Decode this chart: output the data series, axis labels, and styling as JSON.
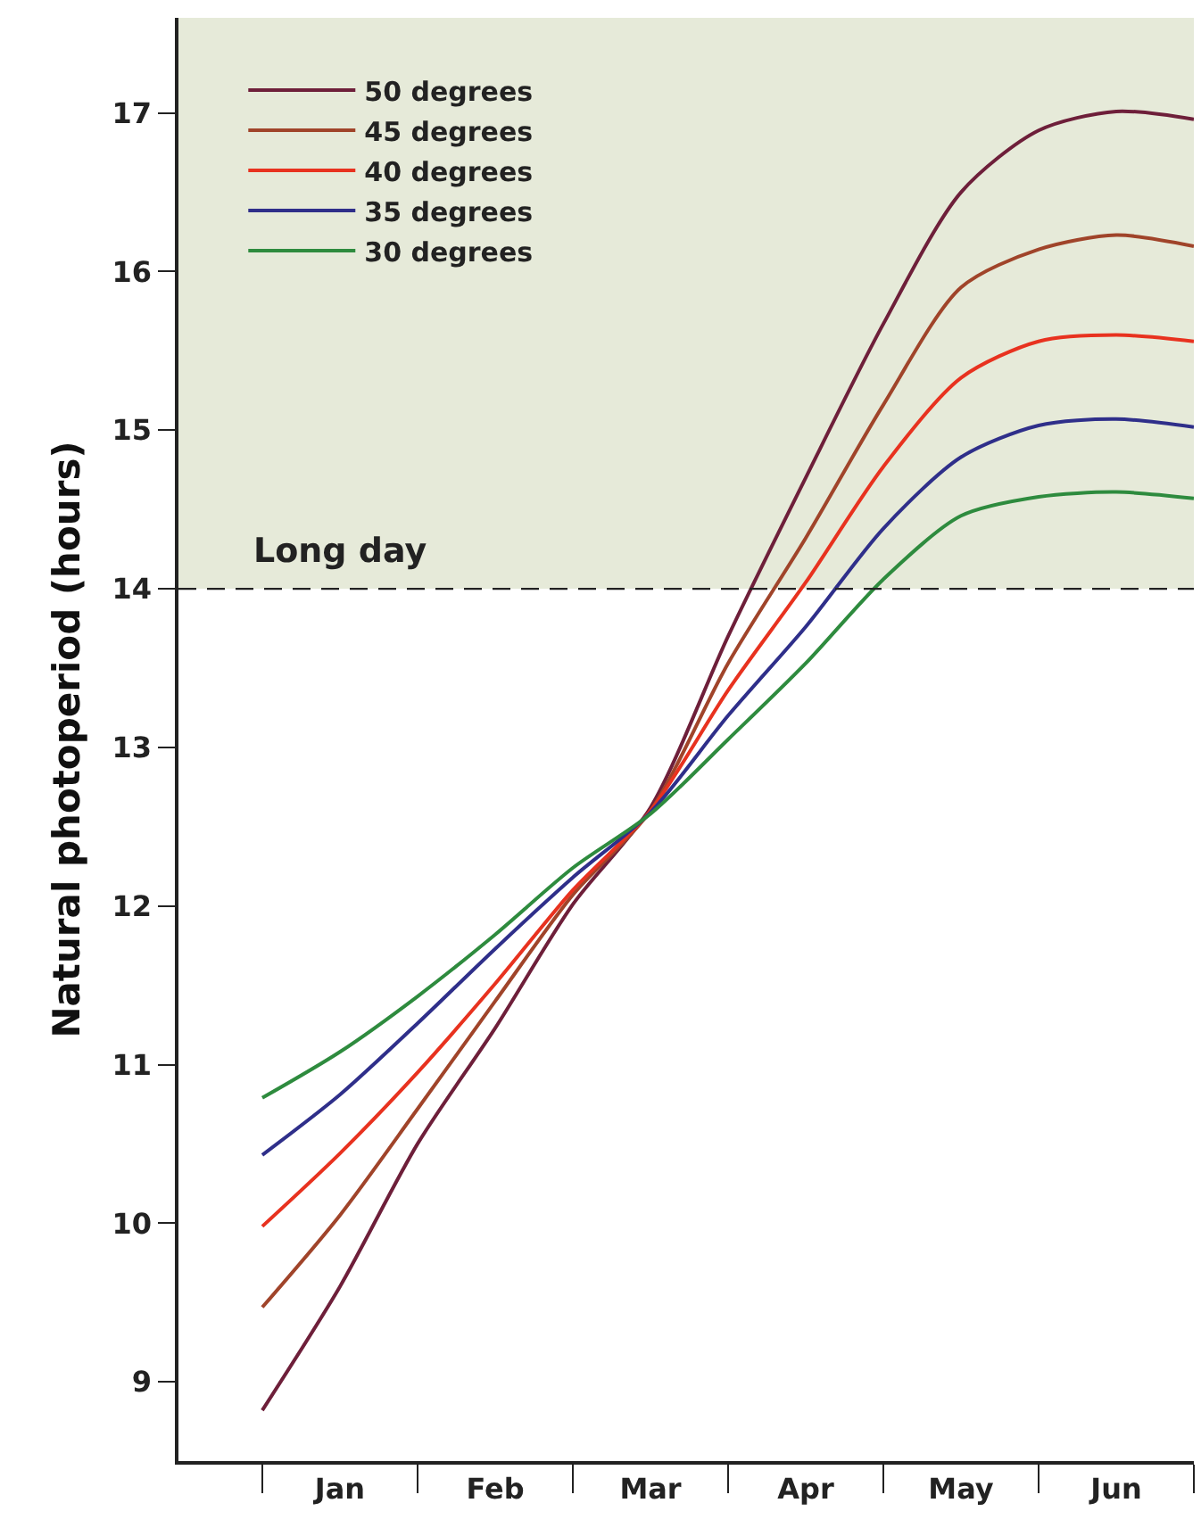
{
  "chart_data": {
    "type": "line",
    "ylabel": "Natural photoperiod (hours)",
    "categories": [
      null,
      "Jan",
      null,
      "Feb",
      null,
      "Mar",
      null,
      "Apr",
      null,
      "May",
      null,
      "Jun",
      null
    ],
    "ylim": [
      8.5,
      17.6
    ],
    "yticks": [
      9,
      10,
      11,
      12,
      13,
      14,
      15,
      16,
      17
    ],
    "grid": false,
    "legend": "top left",
    "marker": "none",
    "line_style": "solid",
    "series": [
      {
        "name": "50 degrees",
        "color": "#6e1f3a",
        "values": [
          8.82,
          9.6,
          10.5,
          11.23,
          12.01,
          12.62,
          13.7,
          14.7,
          15.67,
          16.5,
          16.89,
          17.01,
          16.96
        ]
      },
      {
        "name": "45 degrees",
        "color": "#a0442a",
        "values": [
          9.47,
          10.05,
          10.72,
          11.4,
          12.07,
          12.6,
          13.53,
          14.32,
          15.16,
          15.9,
          16.14,
          16.23,
          16.16
        ]
      },
      {
        "name": "40 degrees",
        "color": "#e8321f",
        "values": [
          9.98,
          10.44,
          10.95,
          11.51,
          12.1,
          12.6,
          13.36,
          14.04,
          14.77,
          15.33,
          15.56,
          15.6,
          15.56
        ]
      },
      {
        "name": "35 degrees",
        "color": "#2f2f8a",
        "values": [
          10.43,
          10.81,
          11.26,
          11.73,
          12.18,
          12.59,
          13.2,
          13.76,
          14.38,
          14.83,
          15.03,
          15.07,
          15.02
        ]
      },
      {
        "name": "30 degrees",
        "color": "#2e8b3e",
        "values": [
          10.79,
          11.08,
          11.43,
          11.82,
          12.24,
          12.58,
          13.05,
          13.53,
          14.06,
          14.46,
          14.58,
          14.61,
          14.57
        ]
      }
    ],
    "ref_lines": [
      {
        "axis": "y",
        "value": 14,
        "line_style": "dashed",
        "color": "#222222"
      }
    ],
    "bands": [
      {
        "axis": "y",
        "from": 14,
        "to": 17.6,
        "label": "Long day",
        "color": "#e6ead9"
      }
    ]
  }
}
